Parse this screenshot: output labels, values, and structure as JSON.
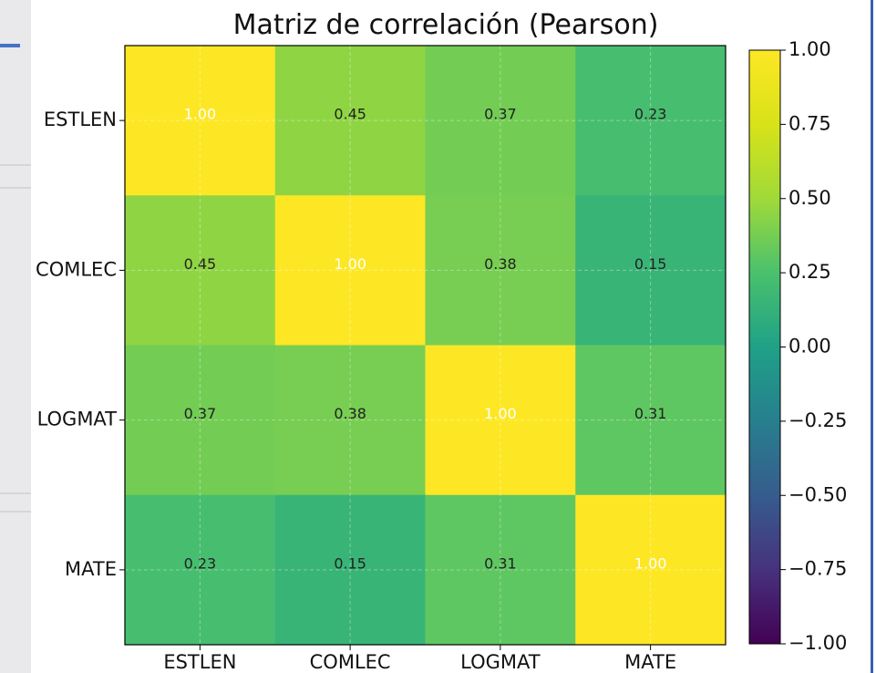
{
  "chart_data": {
    "type": "heatmap",
    "title": "Matriz de correlación (Pearson)",
    "rows": [
      "ESTLEN",
      "COMLEC",
      "LOGMAT",
      "MATE"
    ],
    "columns": [
      "ESTLEN",
      "COMLEC",
      "LOGMAT",
      "MATE"
    ],
    "values": [
      [
        1.0,
        0.45,
        0.37,
        0.23
      ],
      [
        0.45,
        1.0,
        0.38,
        0.15
      ],
      [
        0.37,
        0.38,
        1.0,
        0.31
      ],
      [
        0.23,
        0.15,
        0.31,
        1.0
      ]
    ],
    "value_labels": [
      [
        "1.00",
        "0.45",
        "0.37",
        "0.23"
      ],
      [
        "0.45",
        "1.00",
        "0.38",
        "0.15"
      ],
      [
        "0.37",
        "0.38",
        "1.00",
        "0.31"
      ],
      [
        "0.23",
        "0.15",
        "0.31",
        "1.00"
      ]
    ],
    "colorscale": "viridis",
    "vmin": -1.0,
    "vmax": 1.0,
    "colorbar_ticks": [
      "1.00",
      "0.75",
      "0.50",
      "0.25",
      "0.00",
      "−0.25",
      "−0.50",
      "−0.75",
      "−1.00"
    ],
    "grid": true,
    "colorbar_placement": "right"
  }
}
